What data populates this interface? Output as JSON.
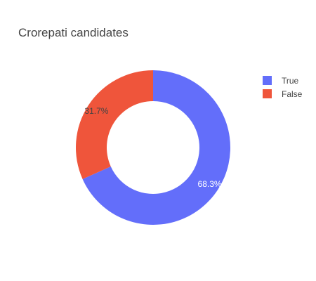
{
  "chart_data": {
    "type": "pie",
    "hole": true,
    "title": "Crorepati candidates",
    "categories": [
      "True",
      "False"
    ],
    "values": [
      68.3,
      31.7
    ],
    "labels": [
      "68.3%",
      "31.7%"
    ],
    "colors": [
      "#636efa",
      "#ef553b"
    ],
    "label_colors": [
      "#ffffff",
      "#444444"
    ],
    "legend_position": "top-right"
  }
}
